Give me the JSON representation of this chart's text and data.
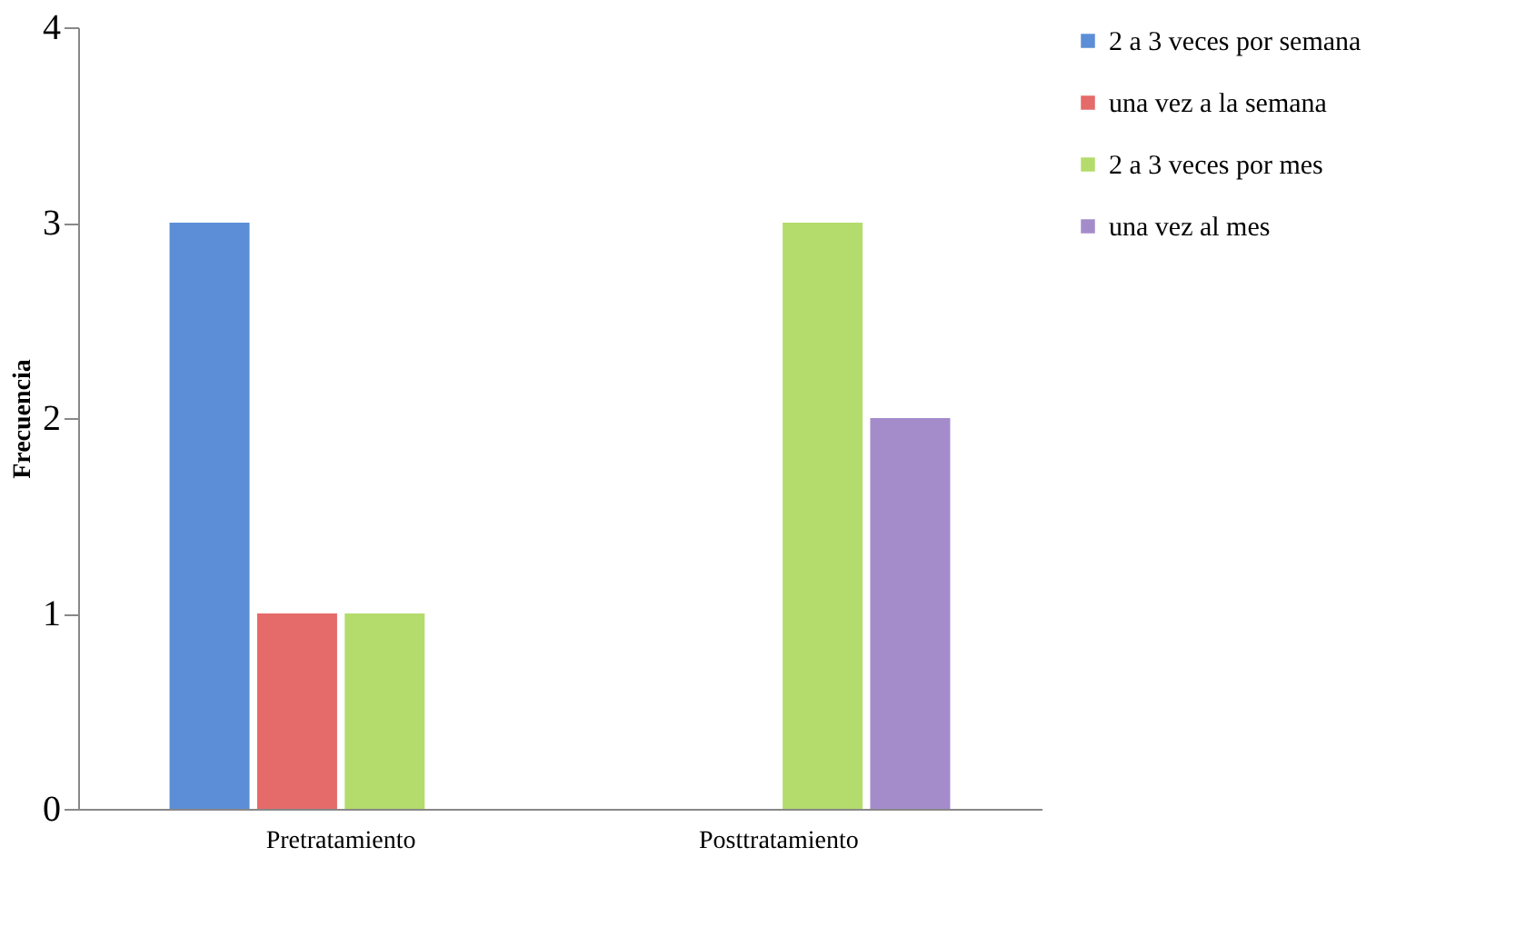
{
  "chart_data": {
    "type": "bar",
    "ylabel": "Frecuencia",
    "categories": [
      "Pretratamiento",
      "Posttratamiento"
    ],
    "series": [
      {
        "name": "2 a 3 veces por semana",
        "color": "#5b8ed6",
        "values": [
          3,
          0
        ]
      },
      {
        "name": "una vez a la semana",
        "color": "#e56a6a",
        "values": [
          1,
          0
        ]
      },
      {
        "name": "2 a 3 veces por mes",
        "color": "#b4dc6c",
        "values": [
          1,
          3
        ]
      },
      {
        "name": "una vez al mes",
        "color": "#a48ccb",
        "values": [
          0,
          2
        ]
      }
    ],
    "ylim": [
      0,
      4
    ],
    "yticks": [
      0,
      1,
      2,
      3,
      4
    ],
    "grid": false,
    "legend": "right"
  }
}
